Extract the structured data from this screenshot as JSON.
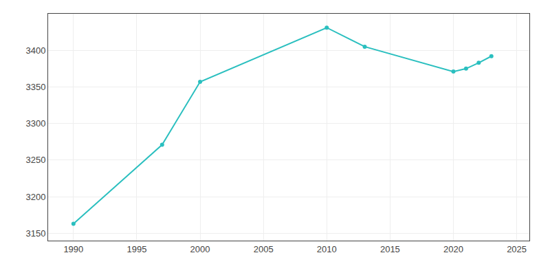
{
  "chart_data": {
    "type": "line",
    "x": [
      1990,
      1997,
      2000,
      2010,
      2013,
      2020,
      2021,
      2022,
      2023
    ],
    "values": [
      3163,
      3271,
      3357,
      3431,
      3405,
      3371,
      3375,
      3383,
      3392
    ],
    "color": "#2abfbf",
    "marker": "circle",
    "xlim": [
      1988,
      2026
    ],
    "ylim": [
      3140,
      3450
    ],
    "xticks": [
      1990,
      1995,
      2000,
      2005,
      2010,
      2015,
      2020,
      2025
    ],
    "yticks": [
      3150,
      3200,
      3250,
      3300,
      3350,
      3400
    ],
    "grid": true
  }
}
